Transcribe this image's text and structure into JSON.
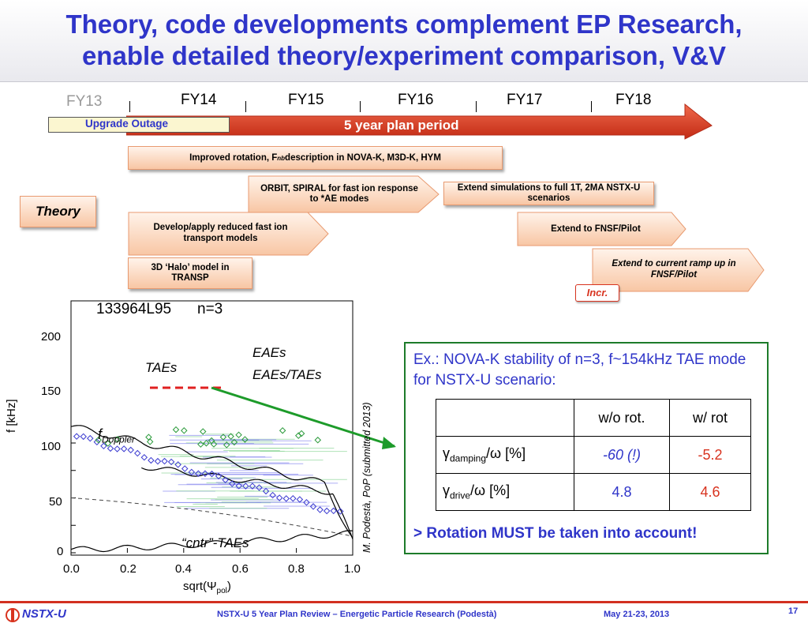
{
  "slide": {
    "title_line1": "Theory, code developments complement EP Research,",
    "title_line2": "enable detailed theory/experiment comparison, V&V"
  },
  "timeline": {
    "fy13": "FY13",
    "years": [
      "FY14",
      "FY15",
      "FY16",
      "FY17",
      "FY18"
    ],
    "upgrade_outage": "Upgrade Outage",
    "plan_period": "5 year plan period"
  },
  "theory_label": "Theory",
  "tasks": {
    "rotation": "Improved rotation, F",
    "rotation_sub": "nb",
    "rotation_tail": " description in NOVA-K, M3D-K, HYM",
    "orbit": "ORBIT, SPIRAL for fast ion response to *AE modes",
    "extend_sim": "Extend simulations to full 1T, 2MA NSTX-U scenarios",
    "reduced": "Develop/apply reduced fast ion transport models",
    "fnsf": "Extend to FNSF/Pilot",
    "halo": "3D ‘Halo’ model in TRANSP",
    "rampup": "Extend to current  ramp up in FNSF/Pilot",
    "incr": "Incr."
  },
  "plot": {
    "shot_label": "133964L95",
    "n_label": "n=3",
    "ylabel": "f  [kHz]",
    "xlabel": "sqrt(Ψ",
    "xlabel_sub": "pol",
    "xlabel_tail": ")",
    "yticks": [
      "0",
      "50",
      "100",
      "150",
      "200"
    ],
    "xticks": [
      "0.0",
      "0.2",
      "0.4",
      "0.6",
      "0.8",
      "1.0"
    ],
    "ann_eaes": "EAEs",
    "ann_eaes_taes": "EAEs/TAEs",
    "ann_taes": "TAEs",
    "ann_fdoppler": "f",
    "ann_fdoppler_sub": "Doppler",
    "ann_cntr": "“cntr”-TAEs",
    "citation": "M. Podestà, PoP (submitted 2013)"
  },
  "example": {
    "text": "Ex.: NOVA-K stability of n=3, f~154kHz TAE mode for NSTX-U scenario:",
    "col_wo": "w/o rot.",
    "col_w": "w/ rot",
    "row1_label": "γ",
    "row1_sub": "damping",
    "row1_tail": "/ω [%]",
    "row1_wo": "-60 (!)",
    "row1_w": "-5.2",
    "row2_label": "γ",
    "row2_sub": "drive",
    "row2_tail": "/ω [%]",
    "row2_wo": "4.8",
    "row2_w": "4.6",
    "conclusion": "> Rotation MUST be taken into account!"
  },
  "footer": {
    "logo": "NSTX-U",
    "center": "NSTX-U 5 Year Plan Review – Energetic Particle Research (Podestà)",
    "date": "May 21-23, 2013",
    "page": "17"
  },
  "colors": {
    "title_blue": "#2f35c9",
    "arrow_red": "#d8331f",
    "green": "#1d7b2a"
  }
}
